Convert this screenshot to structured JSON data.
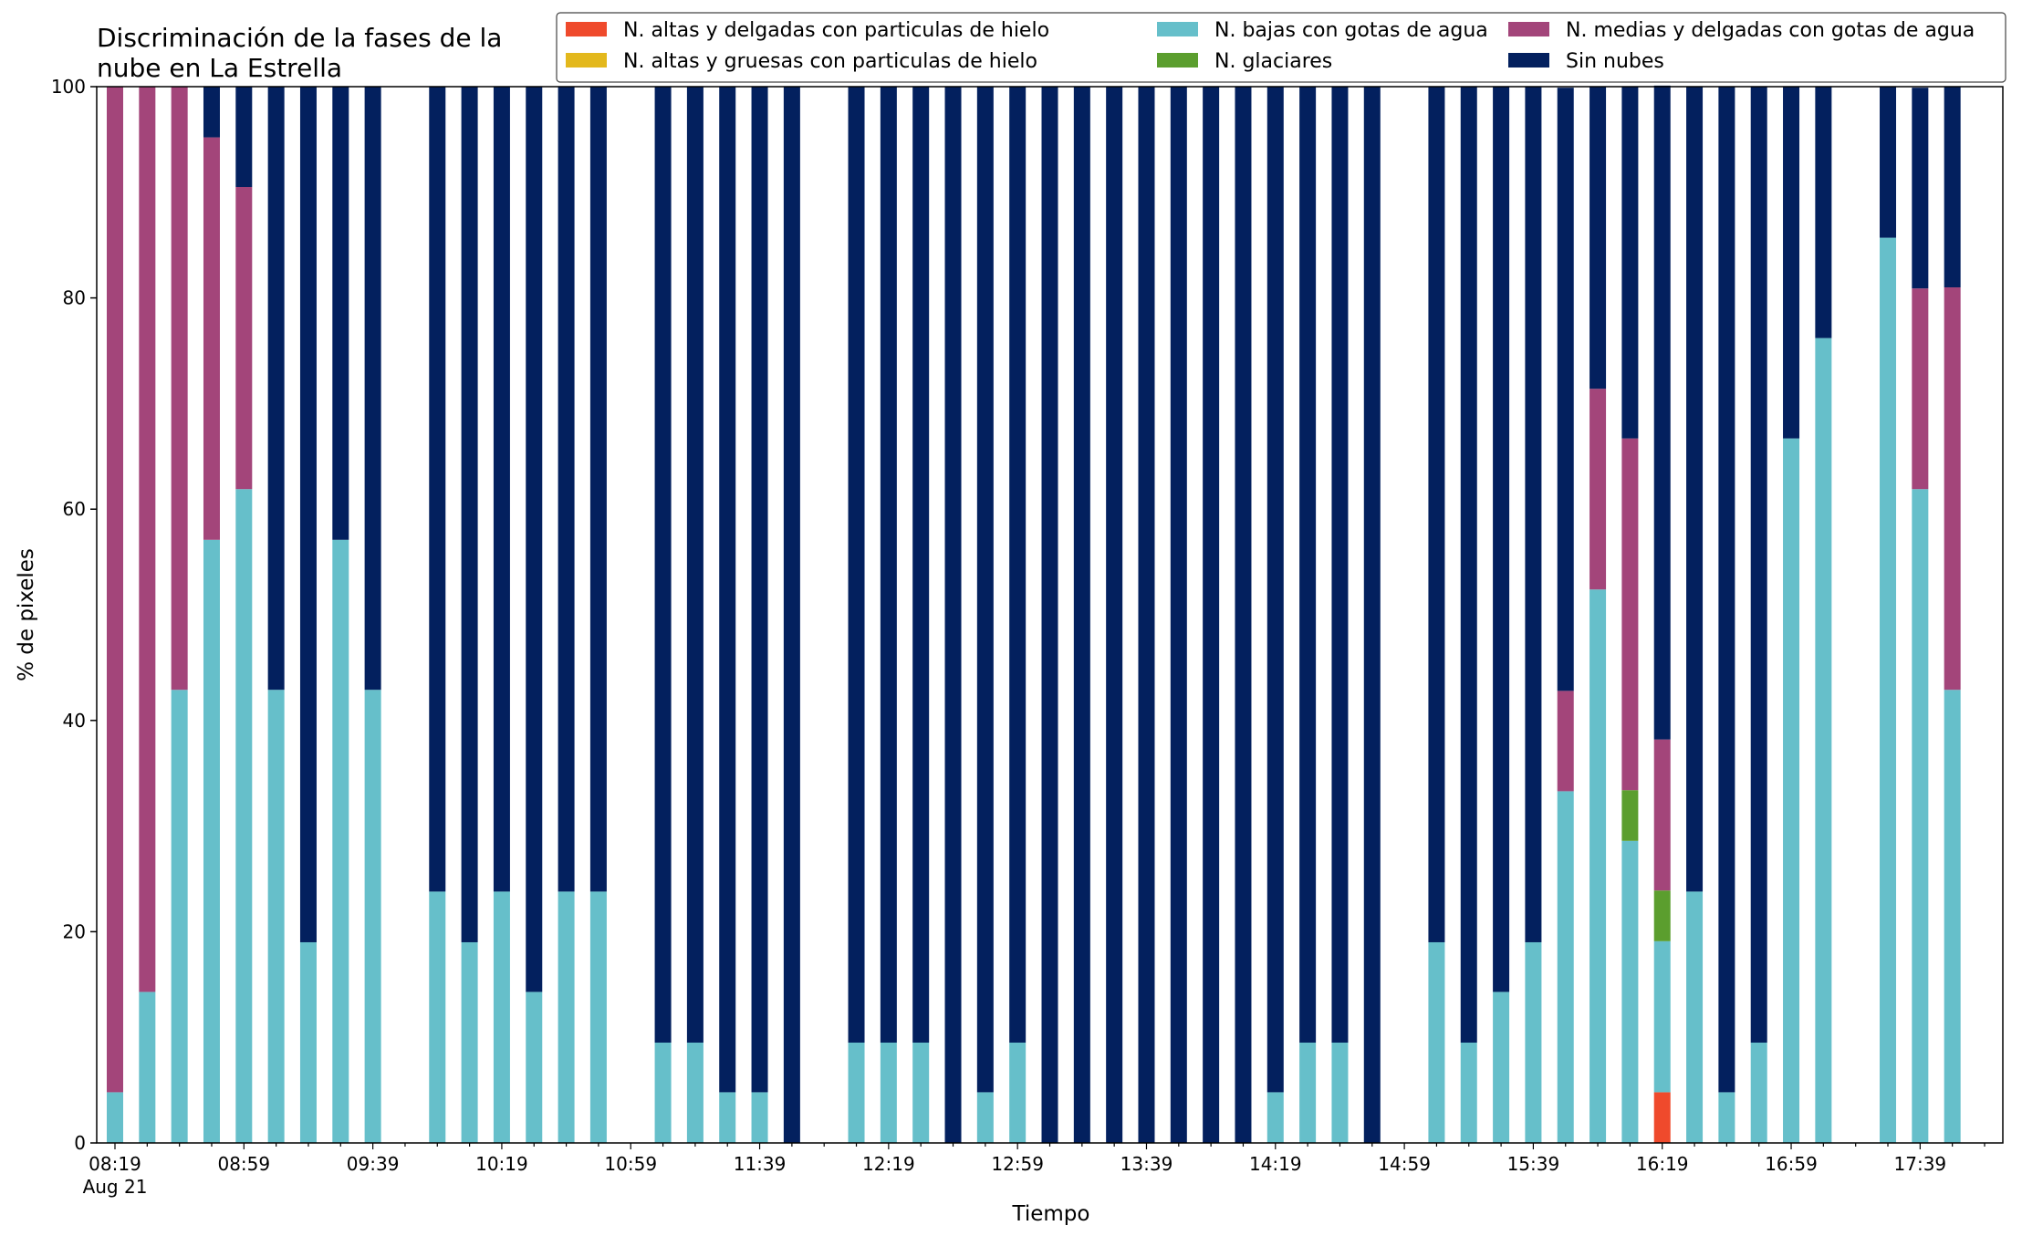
{
  "chart_data": {
    "type": "bar",
    "stacked": true,
    "title_lines": [
      "Discriminación de la fases de la",
      "nube en La Estrella"
    ],
    "xlabel": "Tiempo",
    "ylabel": "% de pixeles",
    "ylim": [
      0,
      100
    ],
    "yticks": [
      0,
      20,
      40,
      60,
      80,
      100
    ],
    "grid": false,
    "legend_position": "top-right",
    "x_start_time": "08:19",
    "x_start_date": "Aug 21",
    "x_end_time": "17:59",
    "x_tick_labels": [
      {
        "time": "08:19",
        "sub": "Aug 21"
      },
      {
        "time": "08:59",
        "sub": ""
      },
      {
        "time": "09:39",
        "sub": ""
      },
      {
        "time": "10:19",
        "sub": ""
      },
      {
        "time": "10:59",
        "sub": ""
      },
      {
        "time": "11:39",
        "sub": ""
      },
      {
        "time": "12:19",
        "sub": ""
      },
      {
        "time": "12:59",
        "sub": ""
      },
      {
        "time": "13:39",
        "sub": ""
      },
      {
        "time": "14:19",
        "sub": ""
      },
      {
        "time": "14:59",
        "sub": ""
      },
      {
        "time": "15:39",
        "sub": ""
      },
      {
        "time": "16:19",
        "sub": ""
      },
      {
        "time": "16:59",
        "sub": ""
      },
      {
        "time": "17:39",
        "sub": ""
      }
    ],
    "series": [
      {
        "name": "N. altas y delgadas con particulas de hielo",
        "color": "#ef4a2c"
      },
      {
        "name": "N. altas y gruesas con particulas de hielo",
        "color": "#e3b81c"
      },
      {
        "name": "N. bajas con gotas de agua",
        "color": "#66bfca"
      },
      {
        "name": "N. glaciares",
        "color": "#5b9e2e"
      },
      {
        "name": "N. medias y delgadas con gotas de agua",
        "color": "#a3457a"
      },
      {
        "name": "Sin nubes",
        "color": "#03205e"
      }
    ],
    "data": [
      {
        "time": "08:19",
        "values": [
          0,
          0,
          4.8,
          0,
          95.2,
          0
        ]
      },
      {
        "time": "08:29",
        "values": [
          0,
          0,
          14.3,
          0,
          85.7,
          0
        ]
      },
      {
        "time": "08:39",
        "values": [
          0,
          0,
          42.9,
          0,
          57.1,
          0
        ]
      },
      {
        "time": "08:49",
        "values": [
          0,
          0,
          57.1,
          0,
          38.1,
          4.8
        ]
      },
      {
        "time": "08:59",
        "values": [
          0,
          0,
          61.9,
          0,
          28.6,
          9.5
        ]
      },
      {
        "time": "09:09",
        "values": [
          0,
          0,
          42.9,
          0,
          0,
          57.1
        ]
      },
      {
        "time": "09:19",
        "values": [
          0,
          0,
          19.0,
          0,
          0,
          81.0
        ]
      },
      {
        "time": "09:29",
        "values": [
          0,
          0,
          57.1,
          0,
          0,
          42.9
        ]
      },
      {
        "time": "09:39",
        "values": [
          0,
          0,
          42.9,
          0,
          0,
          57.1
        ]
      },
      {
        "time": "09:59",
        "values": [
          0,
          0,
          23.8,
          0,
          0,
          76.2
        ]
      },
      {
        "time": "10:09",
        "values": [
          0,
          0,
          19.0,
          0,
          0,
          81.0
        ]
      },
      {
        "time": "10:19",
        "values": [
          0,
          0,
          23.8,
          0,
          0,
          76.2
        ]
      },
      {
        "time": "10:29",
        "values": [
          0,
          0,
          14.3,
          0,
          0,
          85.7
        ]
      },
      {
        "time": "10:39",
        "values": [
          0,
          0,
          23.8,
          0,
          0,
          76.2
        ]
      },
      {
        "time": "10:49",
        "values": [
          0,
          0,
          23.8,
          0,
          0,
          76.2
        ]
      },
      {
        "time": "11:09",
        "values": [
          0,
          0,
          9.5,
          0,
          0,
          90.5
        ]
      },
      {
        "time": "11:19",
        "values": [
          0,
          0,
          9.5,
          0,
          0,
          90.5
        ]
      },
      {
        "time": "11:29",
        "values": [
          0,
          0,
          4.8,
          0,
          0,
          95.2
        ]
      },
      {
        "time": "11:39",
        "values": [
          0,
          0,
          4.8,
          0,
          0,
          95.2
        ]
      },
      {
        "time": "11:49",
        "values": [
          0,
          0,
          0,
          0,
          0,
          100
        ]
      },
      {
        "time": "12:09",
        "values": [
          0,
          0,
          9.5,
          0,
          0,
          90.5
        ]
      },
      {
        "time": "12:19",
        "values": [
          0,
          0,
          9.5,
          0,
          0,
          90.5
        ]
      },
      {
        "time": "12:29",
        "values": [
          0,
          0,
          9.5,
          0,
          0,
          90.5
        ]
      },
      {
        "time": "12:39",
        "values": [
          0,
          0,
          0,
          0,
          0,
          100
        ]
      },
      {
        "time": "12:49",
        "values": [
          0,
          0,
          4.8,
          0,
          0,
          95.2
        ]
      },
      {
        "time": "12:59",
        "values": [
          0,
          0,
          9.5,
          0,
          0,
          90.5
        ]
      },
      {
        "time": "13:09",
        "values": [
          0,
          0,
          0,
          0,
          0,
          100
        ]
      },
      {
        "time": "13:19",
        "values": [
          0,
          0,
          0,
          0,
          0,
          100
        ]
      },
      {
        "time": "13:29",
        "values": [
          0,
          0,
          0,
          0,
          0,
          100
        ]
      },
      {
        "time": "13:39",
        "values": [
          0,
          0,
          0,
          0,
          0,
          100
        ]
      },
      {
        "time": "13:49",
        "values": [
          0,
          0,
          0,
          0,
          0,
          100
        ]
      },
      {
        "time": "13:59",
        "values": [
          0,
          0,
          0,
          0,
          0,
          100
        ]
      },
      {
        "time": "14:09",
        "values": [
          0,
          0,
          0,
          0,
          0,
          100
        ]
      },
      {
        "time": "14:19",
        "values": [
          0,
          0,
          4.8,
          0,
          0,
          95.2
        ]
      },
      {
        "time": "14:29",
        "values": [
          0,
          0,
          9.5,
          0,
          0,
          90.5
        ]
      },
      {
        "time": "14:39",
        "values": [
          0,
          0,
          9.5,
          0,
          0,
          90.5
        ]
      },
      {
        "time": "14:49",
        "values": [
          0,
          0,
          0,
          0,
          0,
          100
        ]
      },
      {
        "time": "15:09",
        "values": [
          0,
          0,
          19.0,
          0,
          0,
          81.0
        ]
      },
      {
        "time": "15:19",
        "values": [
          0,
          0,
          9.5,
          0,
          0,
          90.5
        ]
      },
      {
        "time": "15:29",
        "values": [
          0,
          0,
          14.3,
          0,
          0,
          85.7
        ]
      },
      {
        "time": "15:39",
        "values": [
          0,
          0,
          19.0,
          0,
          0,
          81.0
        ]
      },
      {
        "time": "15:49",
        "values": [
          0,
          0,
          33.3,
          0,
          9.5,
          57.1
        ]
      },
      {
        "time": "15:59",
        "values": [
          0,
          0,
          52.4,
          0,
          19.0,
          28.6
        ]
      },
      {
        "time": "16:09",
        "values": [
          0,
          0,
          28.6,
          4.8,
          33.3,
          33.3
        ]
      },
      {
        "time": "16:19",
        "values": [
          4.8,
          0,
          14.3,
          4.8,
          14.3,
          61.9
        ]
      },
      {
        "time": "16:29",
        "values": [
          0,
          0,
          23.8,
          0,
          0,
          76.2
        ]
      },
      {
        "time": "16:39",
        "values": [
          0,
          0,
          4.8,
          0,
          0,
          95.2
        ]
      },
      {
        "time": "16:49",
        "values": [
          0,
          0,
          9.5,
          0,
          0,
          90.5
        ]
      },
      {
        "time": "16:59",
        "values": [
          0,
          0,
          66.7,
          0,
          0,
          33.3
        ]
      },
      {
        "time": "17:09",
        "values": [
          0,
          0,
          76.2,
          0,
          0,
          23.8
        ]
      },
      {
        "time": "17:29",
        "values": [
          0,
          0,
          85.7,
          0,
          0,
          14.3
        ]
      },
      {
        "time": "17:39",
        "values": [
          0,
          0,
          61.9,
          0,
          19.0,
          19.0
        ]
      },
      {
        "time": "17:49",
        "values": [
          0,
          0,
          42.9,
          0,
          38.1,
          19.0
        ]
      }
    ]
  }
}
